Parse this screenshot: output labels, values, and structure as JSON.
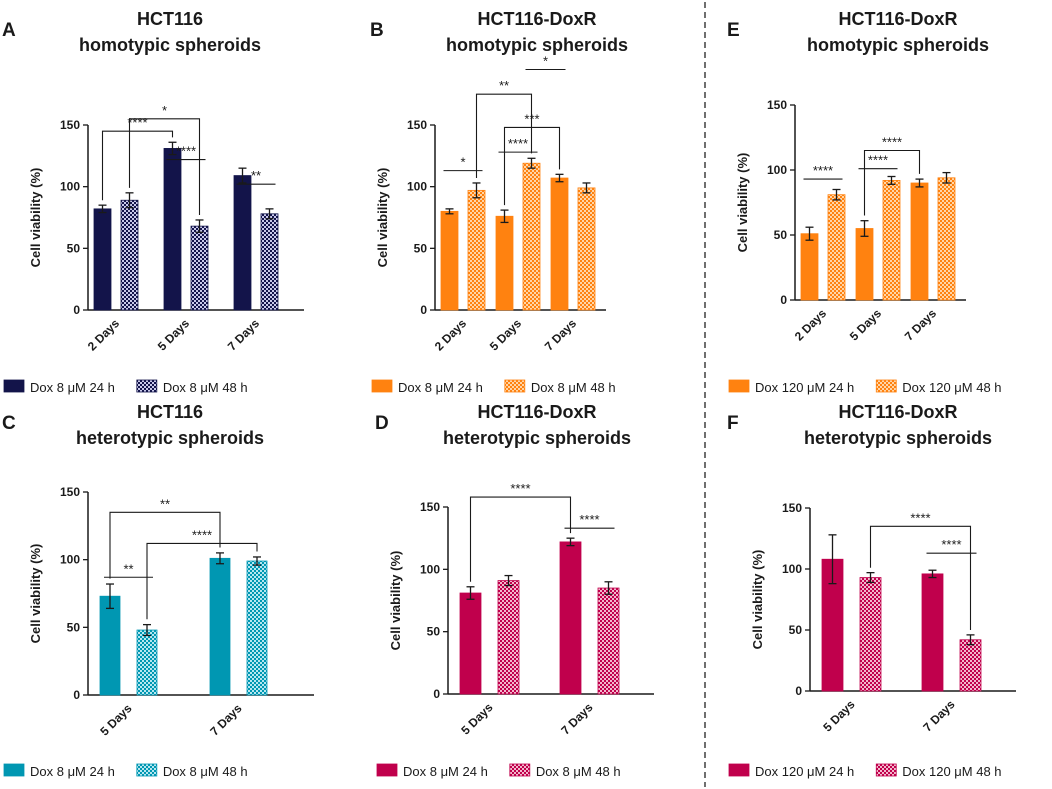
{
  "panels": [
    {
      "id": "A",
      "letter": "A",
      "title": [
        "HCT116",
        "homotypic spheroids"
      ],
      "ylabel": "Cell viability (%)",
      "ylim": [
        0,
        150
      ],
      "yticks": [
        0,
        50,
        100,
        150
      ],
      "categories": [
        "2 Days",
        "5 Days",
        "7 Days"
      ],
      "series": [
        {
          "name": "Dox 8 μM 24 h",
          "style": "solid",
          "values": [
            82,
            131,
            109
          ],
          "errors": [
            3,
            5,
            6
          ]
        },
        {
          "name": "Dox 8 μM 48 h",
          "style": "checker",
          "values": [
            89,
            68,
            78
          ],
          "errors": [
            6,
            5,
            4
          ]
        }
      ],
      "color": "#13144a",
      "checker_bg": "#c9c9ea",
      "significance": [
        {
          "label": "*",
          "from": [
            0,
            1
          ],
          "to": [
            1,
            1
          ],
          "level": 155
        },
        {
          "label": "****",
          "from": [
            0,
            0
          ],
          "to": [
            1,
            0
          ],
          "level": 145
        },
        {
          "label": "****",
          "from": [
            1,
            0
          ],
          "to": [
            1,
            1
          ],
          "level": 122
        },
        {
          "label": "**",
          "from": [
            2,
            0
          ],
          "to": [
            2,
            1
          ],
          "level": 102
        }
      ]
    },
    {
      "id": "B",
      "letter": "B",
      "title": [
        "HCT116-DoxR",
        "homotypic spheroids"
      ],
      "ylabel": "Cell viability (%)",
      "ylim": [
        0,
        150
      ],
      "yticks": [
        0,
        50,
        100,
        150
      ],
      "categories": [
        "2 Days",
        "5 Days",
        "7 Days"
      ],
      "series": [
        {
          "name": "Dox 8 μM 24 h",
          "style": "solid",
          "values": [
            80,
            76,
            107
          ],
          "errors": [
            2,
            5,
            3
          ]
        },
        {
          "name": "Dox 8 μM 48 h",
          "style": "checker",
          "values": [
            97,
            119,
            99
          ],
          "errors": [
            6,
            4,
            4
          ]
        }
      ],
      "color": "#ff8210",
      "checker_bg": "#ffd6a8",
      "significance": [
        {
          "label": "*",
          "from": [
            1,
            1
          ],
          "to": [
            2,
            0
          ],
          "level": 195
        },
        {
          "label": "**",
          "from": [
            0,
            1
          ],
          "to": [
            1,
            1
          ],
          "level": 175
        },
        {
          "label": "***",
          "from": [
            1,
            0
          ],
          "to": [
            2,
            0
          ],
          "level": 148
        },
        {
          "label": "****",
          "from": [
            1,
            0
          ],
          "to": [
            1,
            1
          ],
          "level": 128
        },
        {
          "label": "*",
          "from": [
            0,
            0
          ],
          "to": [
            0,
            1
          ],
          "level": 113
        }
      ]
    },
    {
      "id": "E",
      "letter": "E",
      "title": [
        "HCT116-DoxR",
        "homotypic spheroids"
      ],
      "ylabel": "Cell viability (%)",
      "ylim": [
        0,
        150
      ],
      "yticks": [
        0,
        50,
        100,
        150
      ],
      "categories": [
        "2 Days",
        "5 Days",
        "7 Days"
      ],
      "series": [
        {
          "name": "Dox 120 μM 24 h",
          "style": "solid",
          "values": [
            51,
            55,
            90
          ],
          "errors": [
            5,
            6,
            3
          ]
        },
        {
          "name": "Dox 120 μM 48 h",
          "style": "checker",
          "values": [
            81,
            92,
            94
          ],
          "errors": [
            4,
            3,
            4
          ]
        }
      ],
      "color": "#ff8210",
      "checker_bg": "#ffd6a8",
      "significance": [
        {
          "label": "****",
          "from": [
            1,
            0
          ],
          "to": [
            2,
            0
          ],
          "level": 115
        },
        {
          "label": "****",
          "from": [
            0,
            0
          ],
          "to": [
            0,
            1
          ],
          "level": 93
        },
        {
          "label": "****",
          "from": [
            1,
            0
          ],
          "to": [
            1,
            1
          ],
          "level": 101
        }
      ]
    },
    {
      "id": "C",
      "letter": "C",
      "title": [
        "HCT116",
        "heterotypic spheroids"
      ],
      "ylabel": "Cell viability (%)",
      "ylim": [
        0,
        150
      ],
      "yticks": [
        0,
        50,
        100,
        150
      ],
      "categories": [
        "5 Days",
        "7 Days"
      ],
      "series": [
        {
          "name": "Dox 8 μM 24 h",
          "style": "solid",
          "values": [
            73,
            101
          ],
          "errors": [
            9,
            4
          ]
        },
        {
          "name": "Dox 8 μM 48 h",
          "style": "checker",
          "values": [
            48,
            99
          ],
          "errors": [
            4,
            3
          ]
        }
      ],
      "color": "#0097b2",
      "checker_bg": "#b7e7f0",
      "significance": [
        {
          "label": "**",
          "from": [
            0,
            0
          ],
          "to": [
            1,
            0
          ],
          "level": 135
        },
        {
          "label": "****",
          "from": [
            0,
            1
          ],
          "to": [
            1,
            1
          ],
          "level": 112
        },
        {
          "label": "**",
          "from": [
            0,
            0
          ],
          "to": [
            0,
            1
          ],
          "level": 87
        }
      ]
    },
    {
      "id": "D",
      "letter": "D",
      "title": [
        "HCT116-DoxR",
        "heterotypic spheroids"
      ],
      "ylabel": "Cell viability (%)",
      "ylim": [
        0,
        150
      ],
      "yticks": [
        0,
        50,
        100,
        150
      ],
      "categories": [
        "5 Days",
        "7 Days"
      ],
      "series": [
        {
          "name": "Dox 8 μM 24 h",
          "style": "solid",
          "values": [
            81,
            122
          ],
          "errors": [
            5,
            3
          ]
        },
        {
          "name": "Dox 8 μM 48 h",
          "style": "checker",
          "values": [
            91,
            85
          ],
          "errors": [
            4,
            5
          ]
        }
      ],
      "color": "#c0004c",
      "checker_bg": "#f2b8cd",
      "significance": [
        {
          "label": "****",
          "from": [
            0,
            0
          ],
          "to": [
            1,
            0
          ],
          "level": 158
        },
        {
          "label": "****",
          "from": [
            1,
            0
          ],
          "to": [
            1,
            1
          ],
          "level": 133
        }
      ]
    },
    {
      "id": "F",
      "letter": "F",
      "title": [
        "HCT116-DoxR",
        "heterotypic spheroids"
      ],
      "ylabel": "Cell viability (%)",
      "ylim": [
        0,
        150
      ],
      "yticks": [
        0,
        50,
        100,
        150
      ],
      "categories": [
        "5 Days",
        "7 Days"
      ],
      "series": [
        {
          "name": "Dox 120 μM 24 h",
          "style": "solid",
          "values": [
            108,
            96
          ],
          "errors": [
            20,
            3
          ]
        },
        {
          "name": "Dox 120 μM 48 h",
          "style": "checker",
          "values": [
            93,
            42
          ],
          "errors": [
            4,
            4
          ]
        }
      ],
      "color": "#c0004c",
      "checker_bg": "#f2b8cd",
      "significance": [
        {
          "label": "****",
          "from": [
            0,
            1
          ],
          "to": [
            1,
            1
          ],
          "level": 135
        },
        {
          "label": "****",
          "from": [
            1,
            0
          ],
          "to": [
            1,
            1
          ],
          "level": 113
        }
      ]
    }
  ],
  "chart_data": [
    {
      "type": "bar",
      "title": "HCT116 homotypic spheroids",
      "ylabel": "Cell viability (%)",
      "ylim": [
        0,
        150
      ],
      "categories": [
        "2 Days",
        "5 Days",
        "7 Days"
      ],
      "series": [
        {
          "name": "Dox 8 μM 24 h",
          "values": [
            82,
            131,
            109
          ]
        },
        {
          "name": "Dox 8 μM 48 h",
          "values": [
            89,
            68,
            78
          ]
        }
      ]
    },
    {
      "type": "bar",
      "title": "HCT116-DoxR homotypic spheroids",
      "ylabel": "Cell viability (%)",
      "ylim": [
        0,
        150
      ],
      "categories": [
        "2 Days",
        "5 Days",
        "7 Days"
      ],
      "series": [
        {
          "name": "Dox 8 μM 24 h",
          "values": [
            80,
            76,
            107
          ]
        },
        {
          "name": "Dox 8 μM 48 h",
          "values": [
            97,
            119,
            99
          ]
        }
      ]
    },
    {
      "type": "bar",
      "title": "HCT116-DoxR homotypic spheroids",
      "ylabel": "Cell viability (%)",
      "ylim": [
        0,
        150
      ],
      "categories": [
        "2 Days",
        "5 Days",
        "7 Days"
      ],
      "series": [
        {
          "name": "Dox 120 μM 24 h",
          "values": [
            51,
            55,
            90
          ]
        },
        {
          "name": "Dox 120 μM 48 h",
          "values": [
            81,
            92,
            94
          ]
        }
      ]
    },
    {
      "type": "bar",
      "title": "HCT116 heterotypic spheroids",
      "ylabel": "Cell viability (%)",
      "ylim": [
        0,
        150
      ],
      "categories": [
        "5 Days",
        "7 Days"
      ],
      "series": [
        {
          "name": "Dox 8 μM 24 h",
          "values": [
            73,
            101
          ]
        },
        {
          "name": "Dox 8 μM 48 h",
          "values": [
            48,
            99
          ]
        }
      ]
    },
    {
      "type": "bar",
      "title": "HCT116-DoxR heterotypic spheroids",
      "ylabel": "Cell viability (%)",
      "ylim": [
        0,
        150
      ],
      "categories": [
        "5 Days",
        "7 Days"
      ],
      "series": [
        {
          "name": "Dox 8 μM 24 h",
          "values": [
            81,
            122
          ]
        },
        {
          "name": "Dox 8 μM 48 h",
          "values": [
            91,
            85
          ]
        }
      ]
    },
    {
      "type": "bar",
      "title": "HCT116-DoxR heterotypic spheroids",
      "ylabel": "Cell viability (%)",
      "ylim": [
        0,
        150
      ],
      "categories": [
        "5 Days",
        "7 Days"
      ],
      "series": [
        {
          "name": "Dox 120 μM 24 h",
          "values": [
            108,
            96
          ]
        },
        {
          "name": "Dox 120 μM 48 h",
          "values": [
            93,
            42
          ]
        }
      ]
    }
  ]
}
